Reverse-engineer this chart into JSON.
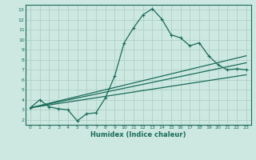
{
  "xlabel": "Humidex (Indice chaleur)",
  "ylabel": "",
  "bg_color": "#cce8e0",
  "line_color": "#1a6b5a",
  "grid_color": "#aaccc0",
  "xlim": [
    -0.5,
    23.5
  ],
  "ylim": [
    1.5,
    13.5
  ],
  "xticks": [
    0,
    1,
    2,
    3,
    4,
    5,
    6,
    7,
    8,
    9,
    10,
    11,
    12,
    13,
    14,
    15,
    16,
    17,
    18,
    19,
    20,
    21,
    22,
    23
  ],
  "yticks": [
    2,
    3,
    4,
    5,
    6,
    7,
    8,
    9,
    10,
    11,
    12,
    13
  ],
  "line1_x": [
    0,
    1,
    2,
    3,
    4,
    5,
    6,
    7,
    8,
    9,
    10,
    11,
    12,
    13,
    14,
    15,
    16,
    17,
    18,
    19,
    20,
    21,
    22,
    23
  ],
  "line1_y": [
    3.2,
    4.0,
    3.3,
    3.1,
    3.0,
    1.9,
    2.6,
    2.7,
    4.2,
    6.4,
    9.7,
    11.2,
    12.5,
    13.1,
    12.1,
    10.5,
    10.2,
    9.4,
    9.7,
    8.4,
    7.5,
    7.0,
    7.1,
    7.0
  ],
  "line2_x": [
    0,
    23
  ],
  "line2_y": [
    3.2,
    7.7
  ],
  "line3_x": [
    0,
    23
  ],
  "line3_y": [
    3.2,
    8.4
  ],
  "line4_x": [
    0,
    23
  ],
  "line4_y": [
    3.2,
    6.5
  ]
}
